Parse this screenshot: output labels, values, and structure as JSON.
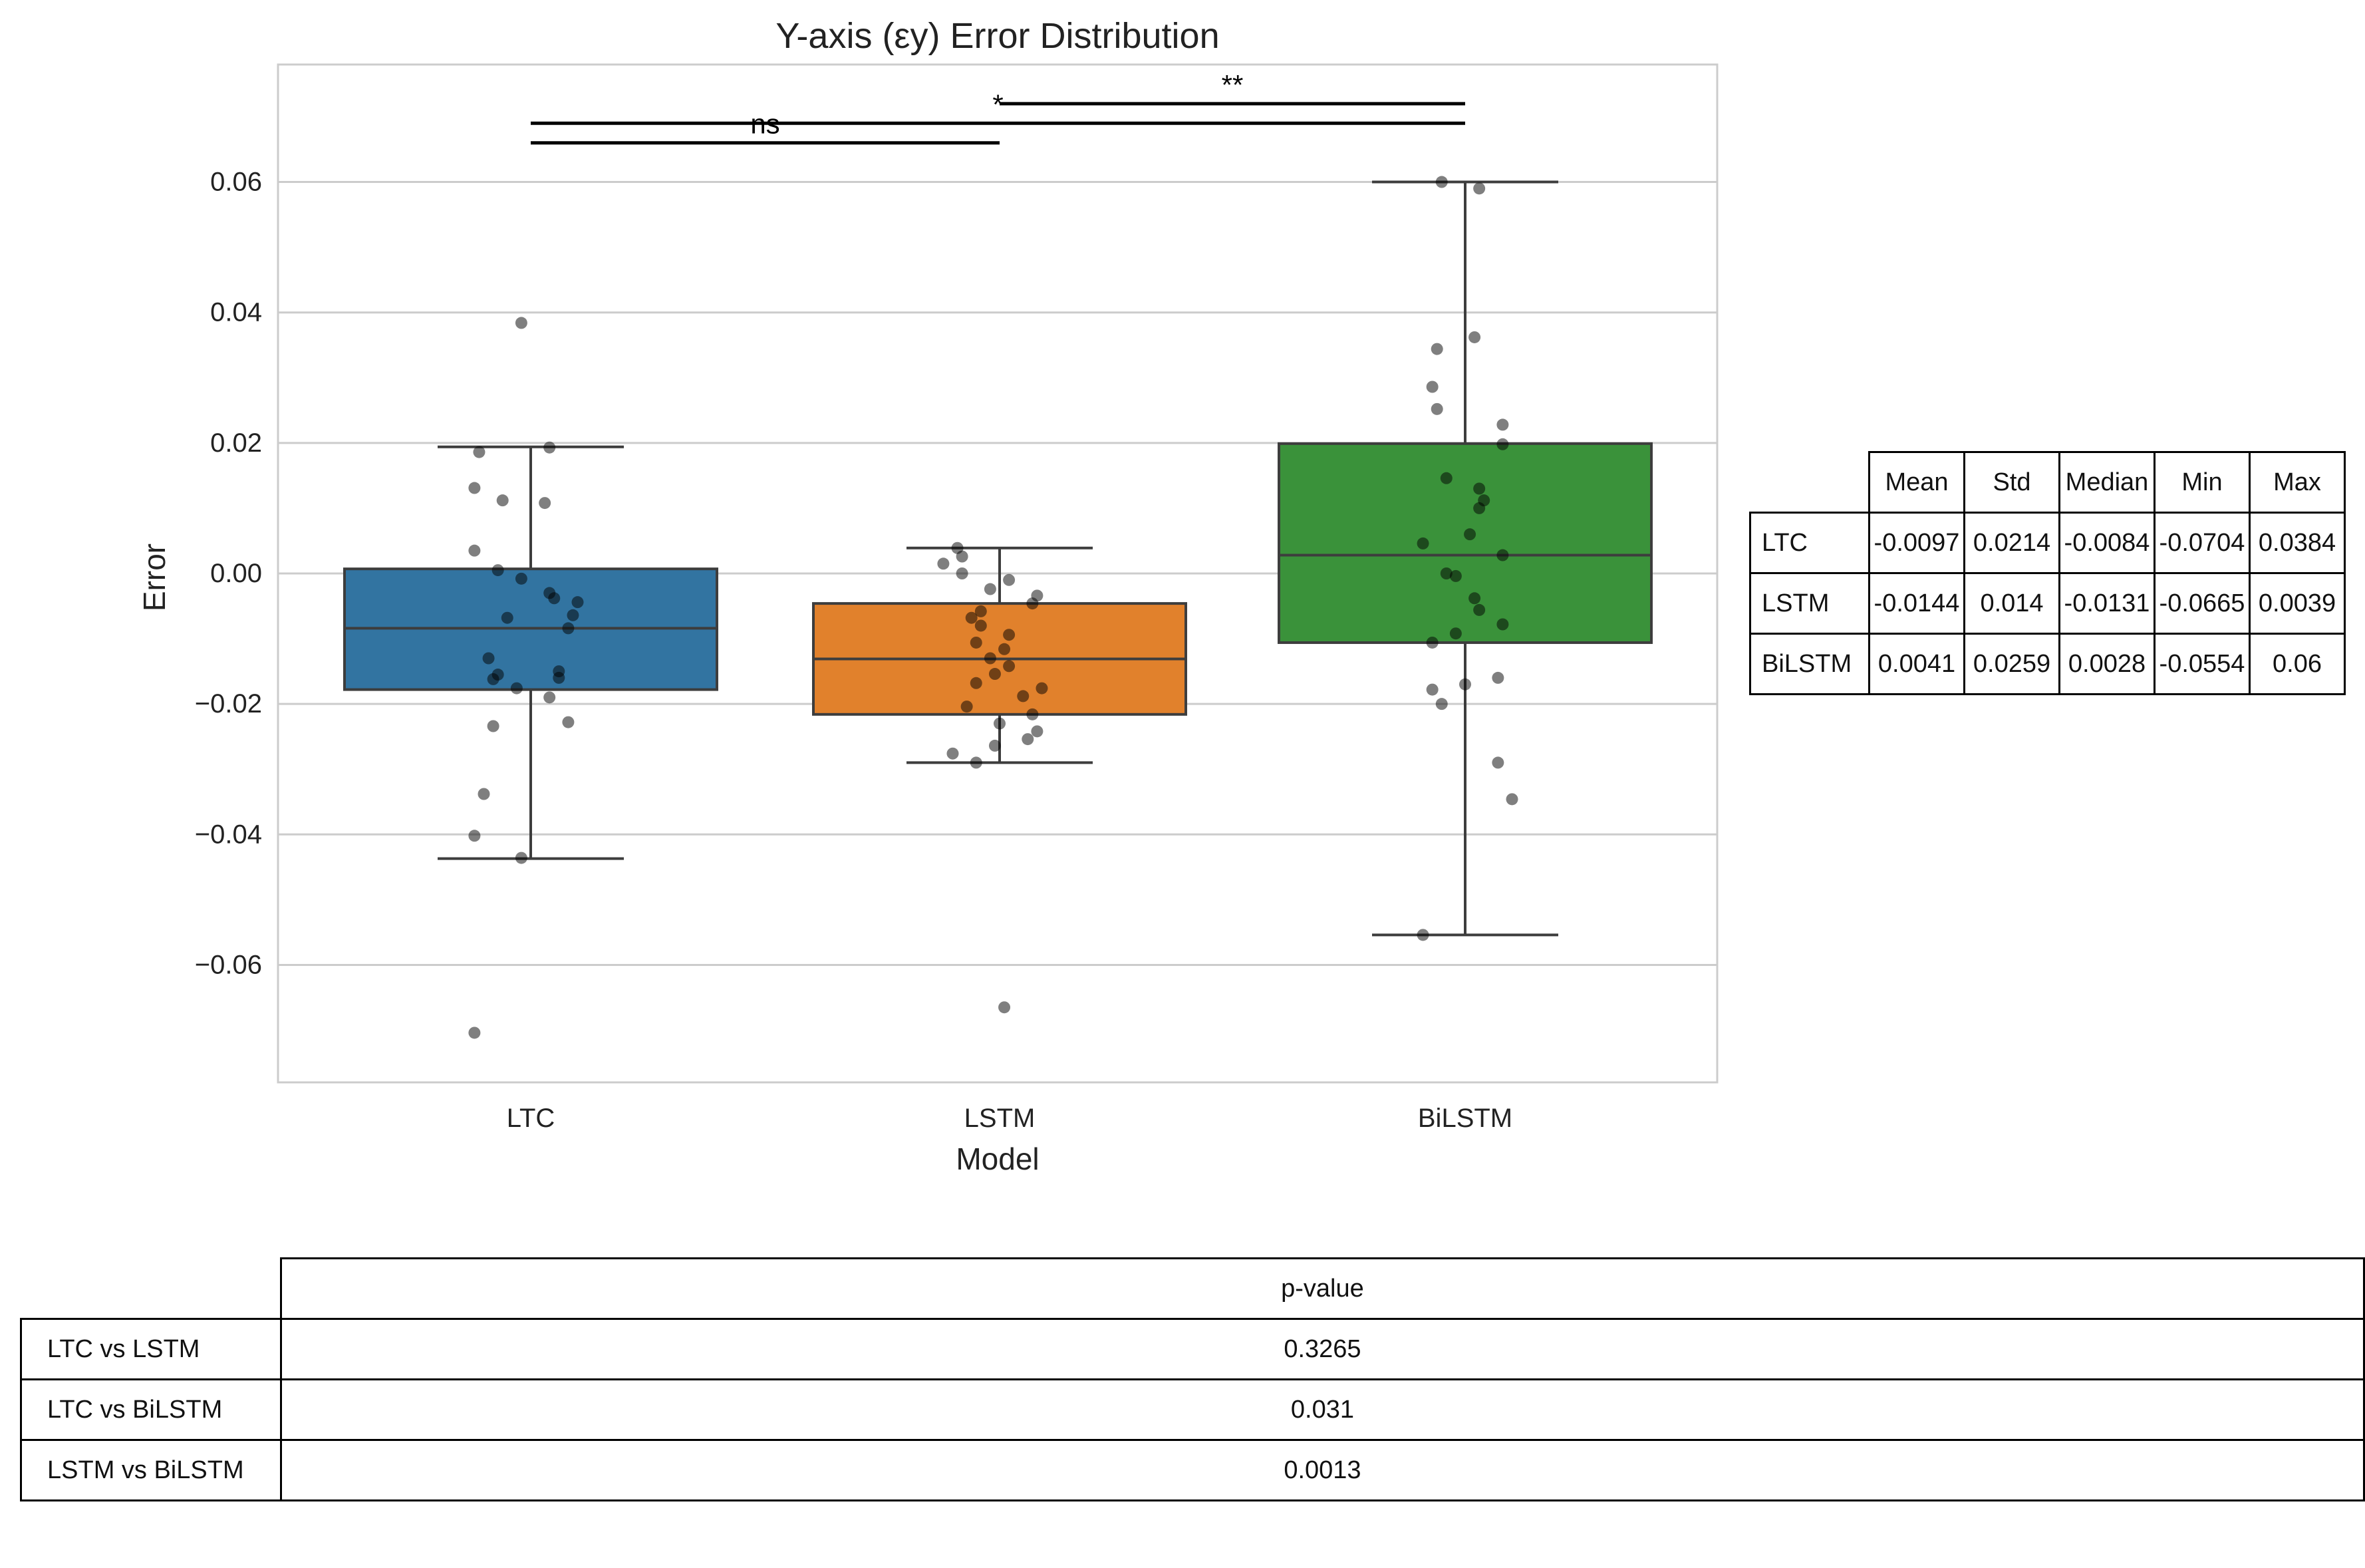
{
  "chart_data": {
    "type": "box",
    "title": "Y-axis (εy) Error Distribution",
    "xlabel": "Model",
    "ylabel": "Error",
    "ylim": [
      -0.078,
      0.078
    ],
    "yticks": [
      -0.06,
      -0.04,
      -0.02,
      0.0,
      0.02,
      0.04,
      0.06
    ],
    "ytick_labels": [
      "−0.06",
      "−0.04",
      "−0.02",
      "0.00",
      "0.02",
      "0.04",
      "0.06"
    ],
    "grid": "y",
    "categories": [
      "LTC",
      "LSTM",
      "BiLSTM"
    ],
    "boxes": [
      {
        "category": "LTC",
        "color": "#3274a1",
        "q1": -0.0178,
        "median": -0.0084,
        "q3": 0.0007,
        "whisker_low": -0.0437,
        "whisker_high": 0.0194,
        "points": [
          {
            "jitter": -0.02,
            "y": 0.0384
          },
          {
            "jitter": -0.11,
            "y": 0.0186
          },
          {
            "jitter": 0.04,
            "y": 0.0193
          },
          {
            "jitter": -0.12,
            "y": 0.0131
          },
          {
            "jitter": -0.06,
            "y": 0.0112
          },
          {
            "jitter": 0.03,
            "y": 0.0108
          },
          {
            "jitter": -0.12,
            "y": 0.0035
          },
          {
            "jitter": -0.07,
            "y": 0.0005
          },
          {
            "jitter": -0.02,
            "y": -0.0008
          },
          {
            "jitter": 0.04,
            "y": -0.003
          },
          {
            "jitter": 0.05,
            "y": -0.0038
          },
          {
            "jitter": 0.1,
            "y": -0.0044
          },
          {
            "jitter": -0.05,
            "y": -0.0068
          },
          {
            "jitter": 0.09,
            "y": -0.0064
          },
          {
            "jitter": 0.08,
            "y": -0.0084
          },
          {
            "jitter": -0.09,
            "y": -0.013
          },
          {
            "jitter": 0.06,
            "y": -0.015
          },
          {
            "jitter": -0.07,
            "y": -0.0155
          },
          {
            "jitter": -0.08,
            "y": -0.0162
          },
          {
            "jitter": 0.06,
            "y": -0.016
          },
          {
            "jitter": -0.03,
            "y": -0.0176
          },
          {
            "jitter": 0.04,
            "y": -0.019
          },
          {
            "jitter": 0.08,
            "y": -0.0228
          },
          {
            "jitter": -0.08,
            "y": -0.0234
          },
          {
            "jitter": -0.1,
            "y": -0.0338
          },
          {
            "jitter": -0.12,
            "y": -0.0402
          },
          {
            "jitter": -0.02,
            "y": -0.0436
          },
          {
            "jitter": -0.12,
            "y": -0.0704
          }
        ]
      },
      {
        "category": "LSTM",
        "color": "#e1812c",
        "q1": -0.0216,
        "median": -0.0131,
        "q3": -0.0046,
        "whisker_low": -0.029,
        "whisker_high": 0.0039,
        "points": [
          {
            "jitter": -0.09,
            "y": 0.0039
          },
          {
            "jitter": -0.08,
            "y": 0.0026
          },
          {
            "jitter": -0.12,
            "y": 0.0015
          },
          {
            "jitter": -0.08,
            "y": 0.0
          },
          {
            "jitter": 0.02,
            "y": -0.001
          },
          {
            "jitter": -0.02,
            "y": -0.0024
          },
          {
            "jitter": 0.08,
            "y": -0.0034
          },
          {
            "jitter": 0.07,
            "y": -0.0046
          },
          {
            "jitter": -0.04,
            "y": -0.0058
          },
          {
            "jitter": -0.06,
            "y": -0.0068
          },
          {
            "jitter": -0.04,
            "y": -0.008
          },
          {
            "jitter": 0.02,
            "y": -0.0094
          },
          {
            "jitter": -0.05,
            "y": -0.0106
          },
          {
            "jitter": 0.01,
            "y": -0.0116
          },
          {
            "jitter": -0.02,
            "y": -0.013
          },
          {
            "jitter": 0.02,
            "y": -0.0142
          },
          {
            "jitter": -0.01,
            "y": -0.0154
          },
          {
            "jitter": -0.05,
            "y": -0.0168
          },
          {
            "jitter": 0.09,
            "y": -0.0176
          },
          {
            "jitter": 0.05,
            "y": -0.0188
          },
          {
            "jitter": -0.07,
            "y": -0.0204
          },
          {
            "jitter": 0.07,
            "y": -0.0216
          },
          {
            "jitter": -0.0,
            "y": -0.023
          },
          {
            "jitter": 0.08,
            "y": -0.0242
          },
          {
            "jitter": 0.06,
            "y": -0.0254
          },
          {
            "jitter": -0.01,
            "y": -0.0264
          },
          {
            "jitter": -0.1,
            "y": -0.0276
          },
          {
            "jitter": -0.05,
            "y": -0.029
          },
          {
            "jitter": 0.01,
            "y": -0.0665
          }
        ]
      },
      {
        "category": "BiLSTM",
        "color": "#3a923a",
        "q1": -0.0106,
        "median": 0.0028,
        "q3": 0.0199,
        "whisker_low": -0.0554,
        "whisker_high": 0.06,
        "points": [
          {
            "jitter": -0.05,
            "y": 0.06
          },
          {
            "jitter": 0.03,
            "y": 0.059
          },
          {
            "jitter": 0.02,
            "y": 0.0362
          },
          {
            "jitter": -0.06,
            "y": 0.0344
          },
          {
            "jitter": -0.07,
            "y": 0.0286
          },
          {
            "jitter": -0.06,
            "y": 0.0252
          },
          {
            "jitter": 0.08,
            "y": 0.0228
          },
          {
            "jitter": 0.08,
            "y": 0.0198
          },
          {
            "jitter": -0.04,
            "y": 0.0146
          },
          {
            "jitter": 0.03,
            "y": 0.013
          },
          {
            "jitter": 0.04,
            "y": 0.0112
          },
          {
            "jitter": 0.03,
            "y": 0.01
          },
          {
            "jitter": 0.01,
            "y": 0.006
          },
          {
            "jitter": -0.09,
            "y": 0.0046
          },
          {
            "jitter": 0.08,
            "y": 0.0028
          },
          {
            "jitter": -0.04,
            "y": 0.0
          },
          {
            "jitter": -0.02,
            "y": -0.0004
          },
          {
            "jitter": 0.02,
            "y": -0.0038
          },
          {
            "jitter": 0.03,
            "y": -0.0056
          },
          {
            "jitter": 0.08,
            "y": -0.0078
          },
          {
            "jitter": -0.02,
            "y": -0.0092
          },
          {
            "jitter": -0.07,
            "y": -0.0106
          },
          {
            "jitter": 0.07,
            "y": -0.016
          },
          {
            "jitter": 0.0,
            "y": -0.017
          },
          {
            "jitter": -0.07,
            "y": -0.0178
          },
          {
            "jitter": -0.05,
            "y": -0.02
          },
          {
            "jitter": 0.07,
            "y": -0.029
          },
          {
            "jitter": 0.1,
            "y": -0.0346
          },
          {
            "jitter": -0.09,
            "y": -0.0554
          }
        ]
      }
    ],
    "annotations": [
      {
        "from": "LTC",
        "to": "LSTM",
        "y": 0.066,
        "label": "ns"
      },
      {
        "from": "LTC",
        "to": "BiLSTM",
        "y": 0.069,
        "label": "*"
      },
      {
        "from": "LSTM",
        "to": "BiLSTM",
        "y": 0.072,
        "label": "**"
      }
    ]
  },
  "stats_table": {
    "headers": [
      "Mean",
      "Std",
      "Median",
      "Min",
      "Max"
    ],
    "rows": [
      {
        "label": "LTC",
        "values": [
          "-0.0097",
          "0.0214",
          "-0.0084",
          "-0.0704",
          "0.0384"
        ]
      },
      {
        "label": "LSTM",
        "values": [
          "-0.0144",
          "0.014",
          "-0.0131",
          "-0.0665",
          "0.0039"
        ]
      },
      {
        "label": "BiLSTM",
        "values": [
          "0.0041",
          "0.0259",
          "0.0028",
          "-0.0554",
          "0.06"
        ]
      }
    ]
  },
  "pvalue_table": {
    "header": "p-value",
    "rows": [
      {
        "label": "LTC vs LSTM",
        "value": "0.3265"
      },
      {
        "label": "LTC vs BiLSTM",
        "value": "0.031"
      },
      {
        "label": "LSTM vs BiLSTM",
        "value": "0.0013"
      }
    ]
  }
}
